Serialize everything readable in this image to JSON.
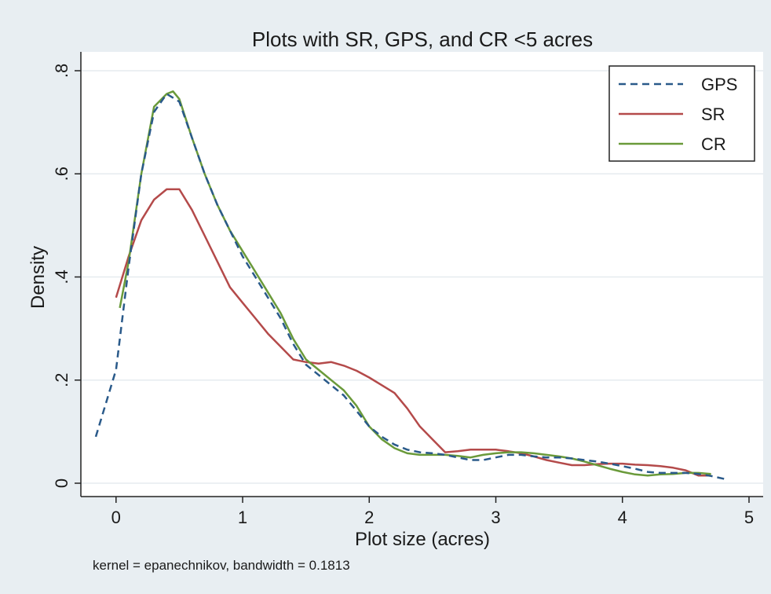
{
  "chart_data": {
    "type": "line",
    "title": "Plots with SR, GPS, and CR <5 acres",
    "xlabel": "Plot size (acres)",
    "ylabel": "Density",
    "note": "kernel = epanechnikov, bandwidth = 0.1813",
    "xlim": [
      -0.25,
      5.05
    ],
    "ylim": [
      0,
      0.8
    ],
    "x_ticks": [
      0,
      1,
      2,
      3,
      4,
      5
    ],
    "x_tick_labels": [
      "0",
      "1",
      "2",
      "3",
      "4",
      "5"
    ],
    "y_ticks": [
      0,
      0.2,
      0.4,
      0.6,
      0.8
    ],
    "y_tick_labels": [
      "0",
      ".2",
      ".4",
      ".6",
      ".8"
    ],
    "grid": "horizontal",
    "legend_position": "top-right",
    "series": [
      {
        "name": "GPS",
        "color": "#2a5a8a",
        "dash": "dashed",
        "points": [
          [
            -0.16,
            0.09
          ],
          [
            0,
            0.22
          ],
          [
            0.1,
            0.42
          ],
          [
            0.2,
            0.6
          ],
          [
            0.3,
            0.72
          ],
          [
            0.4,
            0.755
          ],
          [
            0.5,
            0.74
          ],
          [
            0.6,
            0.67
          ],
          [
            0.7,
            0.6
          ],
          [
            0.8,
            0.54
          ],
          [
            0.9,
            0.49
          ],
          [
            1.0,
            0.44
          ],
          [
            1.1,
            0.4
          ],
          [
            1.2,
            0.36
          ],
          [
            1.3,
            0.32
          ],
          [
            1.4,
            0.27
          ],
          [
            1.5,
            0.23
          ],
          [
            1.6,
            0.21
          ],
          [
            1.7,
            0.19
          ],
          [
            1.8,
            0.17
          ],
          [
            1.9,
            0.14
          ],
          [
            2.0,
            0.11
          ],
          [
            2.1,
            0.09
          ],
          [
            2.2,
            0.075
          ],
          [
            2.3,
            0.065
          ],
          [
            2.4,
            0.06
          ],
          [
            2.5,
            0.058
          ],
          [
            2.6,
            0.055
          ],
          [
            2.7,
            0.05
          ],
          [
            2.8,
            0.045
          ],
          [
            2.9,
            0.045
          ],
          [
            3.0,
            0.05
          ],
          [
            3.1,
            0.055
          ],
          [
            3.2,
            0.055
          ],
          [
            3.3,
            0.052
          ],
          [
            3.4,
            0.05
          ],
          [
            3.5,
            0.05
          ],
          [
            3.6,
            0.048
          ],
          [
            3.7,
            0.045
          ],
          [
            3.8,
            0.042
          ],
          [
            3.9,
            0.038
          ],
          [
            4.0,
            0.033
          ],
          [
            4.1,
            0.028
          ],
          [
            4.2,
            0.022
          ],
          [
            4.3,
            0.02
          ],
          [
            4.4,
            0.02
          ],
          [
            4.5,
            0.02
          ],
          [
            4.6,
            0.018
          ],
          [
            4.7,
            0.014
          ],
          [
            4.83,
            0.007
          ]
        ]
      },
      {
        "name": "SR",
        "color": "#b44a4a",
        "dash": "solid",
        "points": [
          [
            0,
            0.36
          ],
          [
            0.1,
            0.44
          ],
          [
            0.2,
            0.51
          ],
          [
            0.3,
            0.55
          ],
          [
            0.4,
            0.57
          ],
          [
            0.5,
            0.57
          ],
          [
            0.6,
            0.53
          ],
          [
            0.7,
            0.48
          ],
          [
            0.8,
            0.43
          ],
          [
            0.9,
            0.38
          ],
          [
            1.0,
            0.35
          ],
          [
            1.1,
            0.32
          ],
          [
            1.2,
            0.29
          ],
          [
            1.3,
            0.265
          ],
          [
            1.4,
            0.24
          ],
          [
            1.5,
            0.235
          ],
          [
            1.6,
            0.232
          ],
          [
            1.7,
            0.235
          ],
          [
            1.8,
            0.228
          ],
          [
            1.9,
            0.218
          ],
          [
            2.0,
            0.205
          ],
          [
            2.1,
            0.19
          ],
          [
            2.2,
            0.175
          ],
          [
            2.3,
            0.145
          ],
          [
            2.4,
            0.11
          ],
          [
            2.5,
            0.085
          ],
          [
            2.6,
            0.06
          ],
          [
            2.7,
            0.062
          ],
          [
            2.8,
            0.065
          ],
          [
            2.9,
            0.065
          ],
          [
            3.0,
            0.065
          ],
          [
            3.1,
            0.062
          ],
          [
            3.2,
            0.058
          ],
          [
            3.3,
            0.052
          ],
          [
            3.4,
            0.045
          ],
          [
            3.5,
            0.04
          ],
          [
            3.6,
            0.035
          ],
          [
            3.7,
            0.035
          ],
          [
            3.8,
            0.037
          ],
          [
            3.9,
            0.038
          ],
          [
            4.0,
            0.038
          ],
          [
            4.1,
            0.036
          ],
          [
            4.2,
            0.035
          ],
          [
            4.3,
            0.033
          ],
          [
            4.4,
            0.03
          ],
          [
            4.5,
            0.025
          ],
          [
            4.6,
            0.015
          ],
          [
            4.7,
            0.015
          ]
        ]
      },
      {
        "name": "CR",
        "color": "#6a9a3a",
        "dash": "solid",
        "points": [
          [
            0.03,
            0.34
          ],
          [
            0.1,
            0.43
          ],
          [
            0.2,
            0.6
          ],
          [
            0.3,
            0.73
          ],
          [
            0.4,
            0.755
          ],
          [
            0.45,
            0.76
          ],
          [
            0.5,
            0.745
          ],
          [
            0.6,
            0.67
          ],
          [
            0.7,
            0.6
          ],
          [
            0.8,
            0.54
          ],
          [
            0.9,
            0.49
          ],
          [
            1.0,
            0.45
          ],
          [
            1.1,
            0.41
          ],
          [
            1.2,
            0.37
          ],
          [
            1.3,
            0.33
          ],
          [
            1.4,
            0.28
          ],
          [
            1.5,
            0.24
          ],
          [
            1.6,
            0.22
          ],
          [
            1.7,
            0.2
          ],
          [
            1.8,
            0.18
          ],
          [
            1.9,
            0.15
          ],
          [
            2.0,
            0.11
          ],
          [
            2.1,
            0.085
          ],
          [
            2.2,
            0.068
          ],
          [
            2.3,
            0.058
          ],
          [
            2.4,
            0.055
          ],
          [
            2.5,
            0.055
          ],
          [
            2.6,
            0.055
          ],
          [
            2.7,
            0.053
          ],
          [
            2.8,
            0.05
          ],
          [
            2.9,
            0.055
          ],
          [
            3.0,
            0.058
          ],
          [
            3.1,
            0.06
          ],
          [
            3.2,
            0.06
          ],
          [
            3.3,
            0.058
          ],
          [
            3.4,
            0.055
          ],
          [
            3.5,
            0.052
          ],
          [
            3.6,
            0.048
          ],
          [
            3.7,
            0.042
          ],
          [
            3.8,
            0.035
          ],
          [
            3.9,
            0.028
          ],
          [
            4.0,
            0.022
          ],
          [
            4.1,
            0.017
          ],
          [
            4.2,
            0.015
          ],
          [
            4.3,
            0.017
          ],
          [
            4.4,
            0.018
          ],
          [
            4.5,
            0.02
          ],
          [
            4.6,
            0.02
          ],
          [
            4.7,
            0.018
          ]
        ]
      }
    ]
  }
}
